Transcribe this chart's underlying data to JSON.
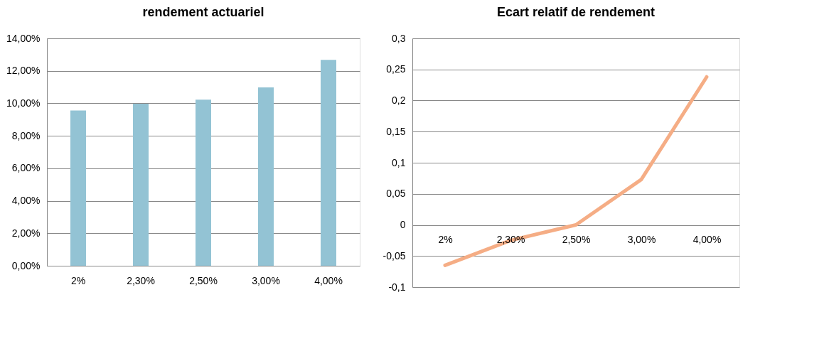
{
  "chart_data": [
    {
      "type": "bar",
      "title": "rendement actuariel",
      "categories": [
        "2%",
        "2,30%",
        "2,50%",
        "3,00%",
        "4,00%"
      ],
      "values": [
        9.56,
        9.97,
        10.23,
        10.98,
        12.68
      ],
      "color": "#93c3d4",
      "ylim": [
        0,
        14
      ],
      "yticks": [
        {
          "value": 0,
          "label": "0,00%"
        },
        {
          "value": 2,
          "label": "2,00%"
        },
        {
          "value": 4,
          "label": "4,00%"
        },
        {
          "value": 6,
          "label": "6,00%"
        },
        {
          "value": 8,
          "label": "8,00%"
        },
        {
          "value": 10,
          "label": "10,00%"
        },
        {
          "value": 12,
          "label": "12,00%"
        },
        {
          "value": 14,
          "label": "14,00%"
        }
      ],
      "grid": "y"
    },
    {
      "type": "line",
      "title": "Ecart relatif  de rendement",
      "categories": [
        "2%",
        "2,30%",
        "2,50%",
        "3,00%",
        "4,00%"
      ],
      "values": [
        -0.065,
        -0.025,
        0,
        0.073,
        0.238
      ],
      "color": "#f5ad85",
      "ylim": [
        -0.1,
        0.3
      ],
      "yticks": [
        {
          "value": -0.1,
          "label": "-0,1"
        },
        {
          "value": -0.05,
          "label": "-0,05"
        },
        {
          "value": 0,
          "label": "0"
        },
        {
          "value": 0.05,
          "label": "0,05"
        },
        {
          "value": 0.1,
          "label": "0,1"
        },
        {
          "value": 0.15,
          "label": "0,15"
        },
        {
          "value": 0.2,
          "label": "0,2"
        },
        {
          "value": 0.25,
          "label": "0,25"
        },
        {
          "value": 0.3,
          "label": "0,3"
        }
      ],
      "grid": "y",
      "marker": "none",
      "line_style": "solid"
    }
  ]
}
